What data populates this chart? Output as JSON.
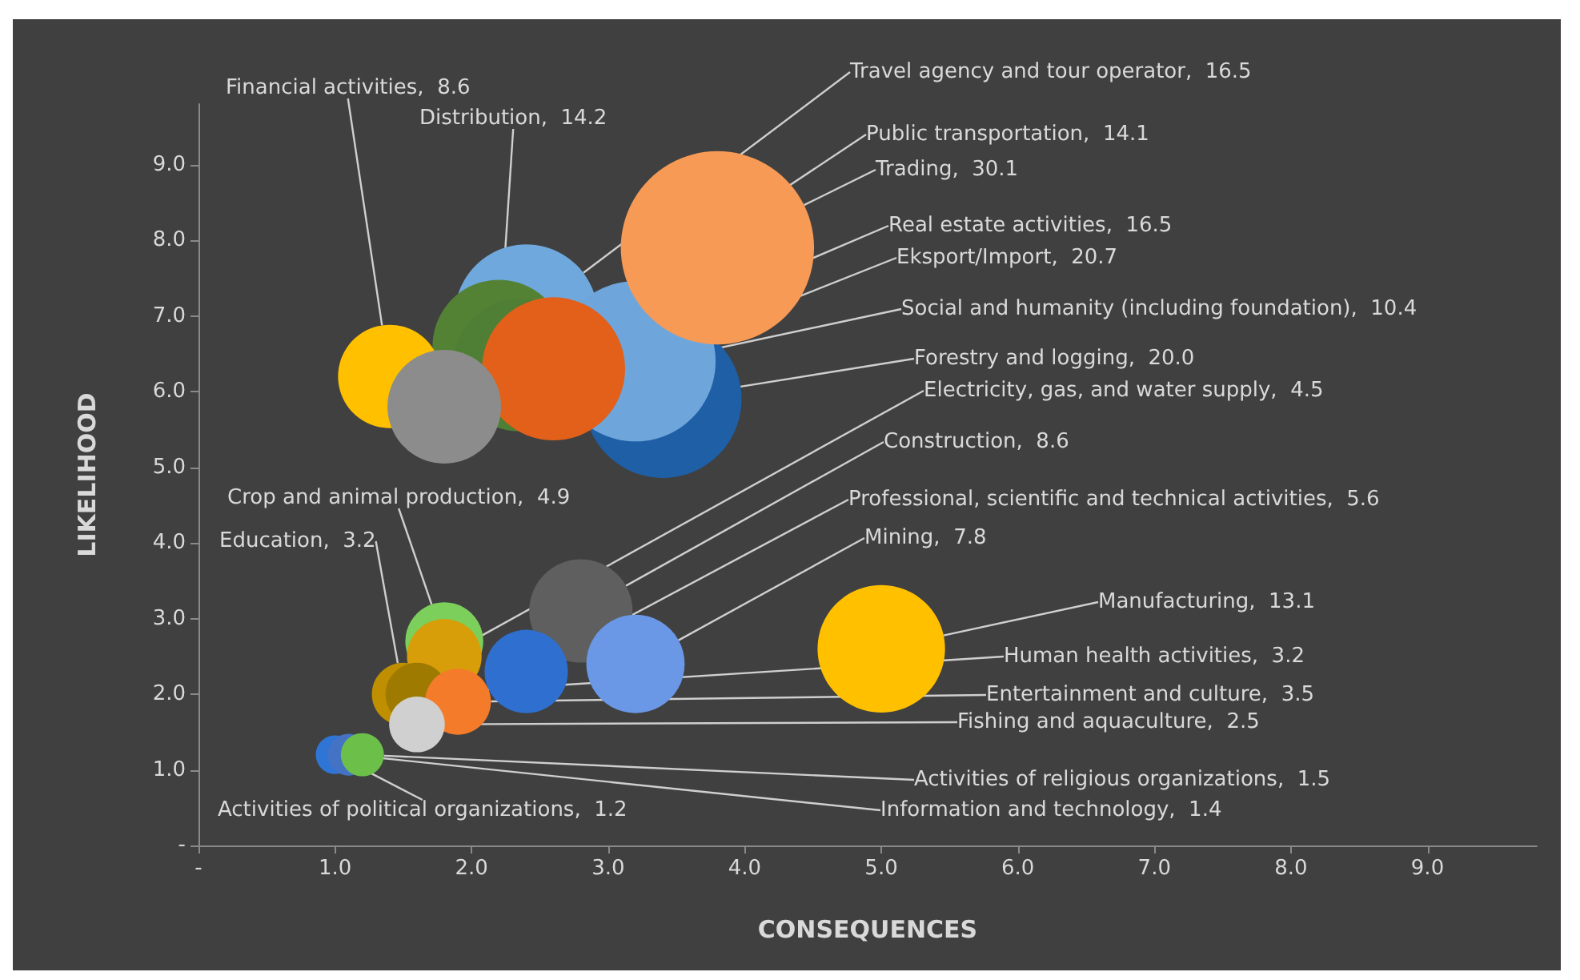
{
  "chart_data": {
    "type": "bubble",
    "xlabel": "CONSEQUENCES",
    "ylabel": "LIKELIHOOD",
    "xlim": [
      0,
      9.8
    ],
    "ylim": [
      0,
      9.8
    ],
    "xticks": [
      {
        "value": 0,
        "label": "-"
      },
      {
        "value": 1,
        "label": "1.0"
      },
      {
        "value": 2,
        "label": "2.0"
      },
      {
        "value": 3,
        "label": "3.0"
      },
      {
        "value": 4,
        "label": "4.0"
      },
      {
        "value": 5,
        "label": "5.0"
      },
      {
        "value": 6,
        "label": "6.0"
      },
      {
        "value": 7,
        "label": "7.0"
      },
      {
        "value": 8,
        "label": "8.0"
      },
      {
        "value": 9,
        "label": "9.0"
      }
    ],
    "yticks": [
      {
        "value": 0,
        "label": "-"
      },
      {
        "value": 1,
        "label": "1.0"
      },
      {
        "value": 2,
        "label": "2.0"
      },
      {
        "value": 3,
        "label": "3.0"
      },
      {
        "value": 4,
        "label": "4.0"
      },
      {
        "value": 5,
        "label": "5.0"
      },
      {
        "value": 6,
        "label": "6.0"
      },
      {
        "value": 7,
        "label": "7.0"
      },
      {
        "value": 8,
        "label": "8.0"
      },
      {
        "value": 9,
        "label": "9.0"
      }
    ],
    "grid": false,
    "series": [
      {
        "color": "#6fa8dc",
        "x": [
          2.4
        ],
        "values": [
          7.0
        ],
        "sizes": [
          16.5
        ],
        "value_labels": [
          "Travel agency and tour operator,  16.5"
        ]
      },
      {
        "color": "#548235",
        "x": [
          2.2
        ],
        "values": [
          6.6
        ],
        "sizes": [
          14.2
        ],
        "value_labels": [
          "Distribution,  14.2"
        ]
      },
      {
        "color": "#4e7f34",
        "x": [
          2.35
        ],
        "values": [
          6.35
        ],
        "sizes": [
          14.1
        ],
        "value_labels": [
          "Public transportation,  14.1"
        ]
      },
      {
        "color": "#1f5fa6",
        "x": [
          3.4
        ],
        "values": [
          5.9
        ],
        "sizes": [
          20.0
        ],
        "value_labels": [
          "Forestry and logging,  20.0"
        ]
      },
      {
        "color": "#6ea6dc",
        "x": [
          3.2
        ],
        "values": [
          6.4
        ],
        "sizes": [
          20.7
        ],
        "value_labels": [
          "Eksport/Import,  20.7"
        ]
      },
      {
        "color": "#f79a55",
        "x": [
          3.8
        ],
        "values": [
          7.9
        ],
        "sizes": [
          30.1
        ],
        "value_labels": [
          "Trading,  30.1"
        ]
      },
      {
        "color": "#ffc000",
        "x": [
          1.4
        ],
        "values": [
          6.2
        ],
        "sizes": [
          8.6
        ],
        "value_labels": [
          "Financial activities,  8.6"
        ]
      },
      {
        "color": "#e2601a",
        "x": [
          2.6
        ],
        "values": [
          6.3
        ],
        "sizes": [
          16.5
        ],
        "value_labels": [
          "Real estate activities,  16.5"
        ]
      },
      {
        "color": "#8c8c8c",
        "x": [
          1.8
        ],
        "values": [
          5.8
        ],
        "sizes": [
          10.4
        ],
        "value_labels": [
          "Social and humanity (including foundation),  10.4"
        ]
      },
      {
        "color": "#5f5f5f",
        "x": [
          2.8
        ],
        "values": [
          3.1
        ],
        "sizes": [
          8.6
        ],
        "value_labels": [
          "Construction,  8.6"
        ]
      },
      {
        "color": "#7ccf5a",
        "x": [
          1.8
        ],
        "values": [
          2.7
        ],
        "sizes": [
          4.9
        ],
        "value_labels": [
          "Crop and animal production,  4.9"
        ]
      },
      {
        "color": "#d89e0a",
        "x": [
          1.8
        ],
        "values": [
          2.5
        ],
        "sizes": [
          4.5
        ],
        "value_labels": [
          "Electricity, gas, and water supply,  4.5"
        ]
      },
      {
        "color": "#2f6fd0",
        "x": [
          2.4
        ],
        "values": [
          2.3
        ],
        "sizes": [
          5.6
        ],
        "value_labels": [
          "Professional, scientific and technical activities,  5.6"
        ]
      },
      {
        "color": "#6a98e6",
        "x": [
          3.2
        ],
        "values": [
          2.4
        ],
        "sizes": [
          7.8
        ],
        "value_labels": [
          "Mining,  7.8"
        ]
      },
      {
        "color": "#ffc000",
        "x": [
          5.0
        ],
        "values": [
          2.6
        ],
        "sizes": [
          13.1
        ],
        "value_labels": [
          "Manufacturing,  13.1"
        ]
      },
      {
        "color": "#bf8f00",
        "x": [
          1.5
        ],
        "values": [
          2.0
        ],
        "sizes": [
          3.2
        ],
        "value_labels": [
          "Education,  3.2"
        ]
      },
      {
        "color": "#9e7b00",
        "x": [
          1.6
        ],
        "values": [
          2.0
        ],
        "sizes": [
          3.2
        ],
        "value_labels": [
          "Human health activities,  3.2"
        ]
      },
      {
        "color": "#f47b2a",
        "x": [
          1.9
        ],
        "values": [
          1.9
        ],
        "sizes": [
          3.5
        ],
        "value_labels": [
          "Entertainment and culture,  3.5"
        ]
      },
      {
        "color": "#d0d0d0",
        "x": [
          1.6
        ],
        "values": [
          1.6
        ],
        "sizes": [
          2.5
        ],
        "value_labels": [
          "Fishing and aquaculture,  2.5"
        ]
      },
      {
        "color": "#2e75d6",
        "x": [
          1.0
        ],
        "values": [
          1.2
        ],
        "sizes": [
          1.2
        ],
        "value_labels": [
          "Activities of political organizations,  1.2"
        ]
      },
      {
        "color": "#4472c4",
        "x": [
          1.1
        ],
        "values": [
          1.2
        ],
        "sizes": [
          1.4
        ],
        "value_labels": [
          "Information and technology,  1.4"
        ]
      },
      {
        "color": "#6cc04a",
        "x": [
          1.2
        ],
        "values": [
          1.2
        ],
        "sizes": [
          1.5
        ],
        "value_labels": [
          "Activities of religious organizations,  1.5"
        ]
      }
    ]
  }
}
